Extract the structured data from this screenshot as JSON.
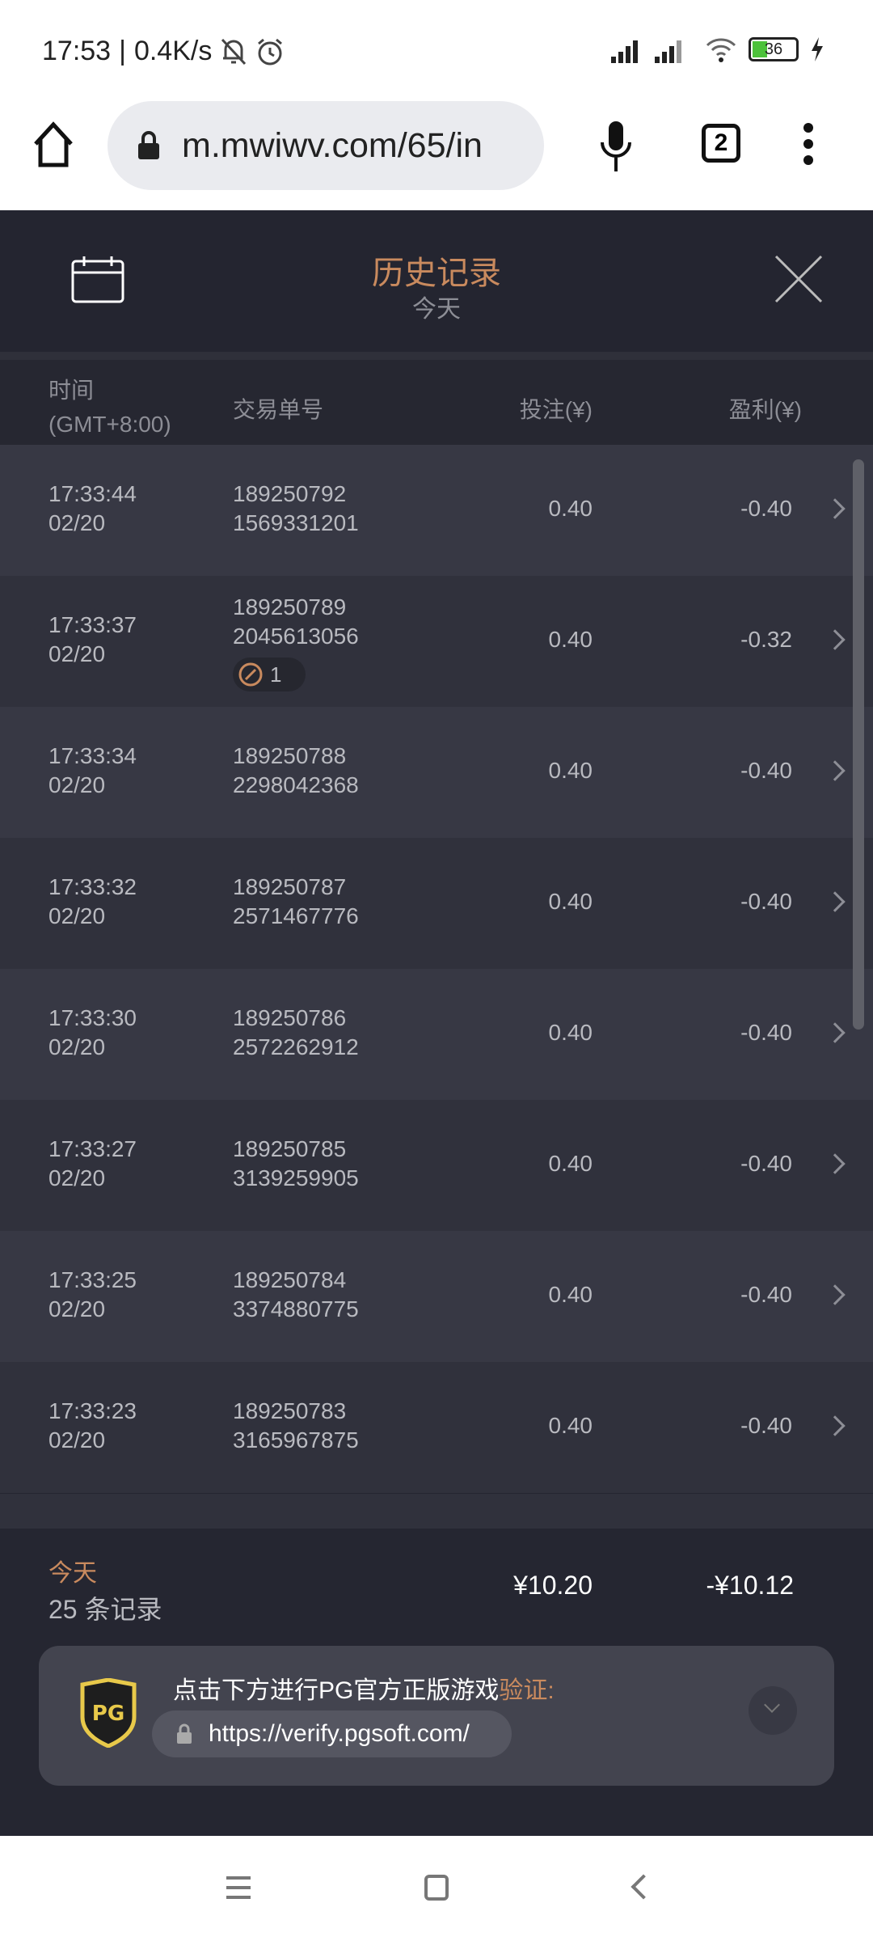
{
  "status_bar": {
    "time": "17:53",
    "speed": "0.4K/s",
    "battery": "36",
    "icons": [
      "bell-off-icon",
      "alarm-icon",
      "signal-icon",
      "wifi-icon",
      "battery-icon",
      "charging-icon"
    ]
  },
  "browser": {
    "url": "m.mwiwv.com/65/in",
    "tab_count": "2"
  },
  "header": {
    "title": "历史记录",
    "subtitle": "今天"
  },
  "columns": {
    "time": "时间",
    "tz": "(GMT+8:00)",
    "txn": "交易单号",
    "bet": "投注(¥)",
    "profit": "盈利(¥)"
  },
  "rows": [
    {
      "time": "17:33:44",
      "date": "02/20",
      "id1": "189250792",
      "id2": "1569331201",
      "bet": "0.40",
      "profit": "-0.40"
    },
    {
      "time": "17:33:37",
      "date": "02/20",
      "id1": "189250789",
      "id2": "2045613056",
      "bet": "0.40",
      "profit": "-0.32",
      "badge": "1"
    },
    {
      "time": "17:33:34",
      "date": "02/20",
      "id1": "189250788",
      "id2": "2298042368",
      "bet": "0.40",
      "profit": "-0.40"
    },
    {
      "time": "17:33:32",
      "date": "02/20",
      "id1": "189250787",
      "id2": "2571467776",
      "bet": "0.40",
      "profit": "-0.40"
    },
    {
      "time": "17:33:30",
      "date": "02/20",
      "id1": "189250786",
      "id2": "2572262912",
      "bet": "0.40",
      "profit": "-0.40"
    },
    {
      "time": "17:33:27",
      "date": "02/20",
      "id1": "189250785",
      "id2": "3139259905",
      "bet": "0.40",
      "profit": "-0.40"
    },
    {
      "time": "17:33:25",
      "date": "02/20",
      "id1": "189250784",
      "id2": "3374880775",
      "bet": "0.40",
      "profit": "-0.40"
    },
    {
      "time": "17:33:23",
      "date": "02/20",
      "id1": "189250783",
      "id2": "3165967875",
      "bet": "0.40",
      "profit": "-0.40"
    }
  ],
  "summary": {
    "label": "今天",
    "count": "25 条记录",
    "total_bet": "¥10.20",
    "total_profit": "-¥10.12"
  },
  "verify": {
    "text": "点击下方进行PG官方正版游戏",
    "highlight": "验证:",
    "url": "https://verify.pgsoft.com/",
    "logo": "PG"
  },
  "colors": {
    "accent": "#c98a5e",
    "bg": "#252631"
  }
}
